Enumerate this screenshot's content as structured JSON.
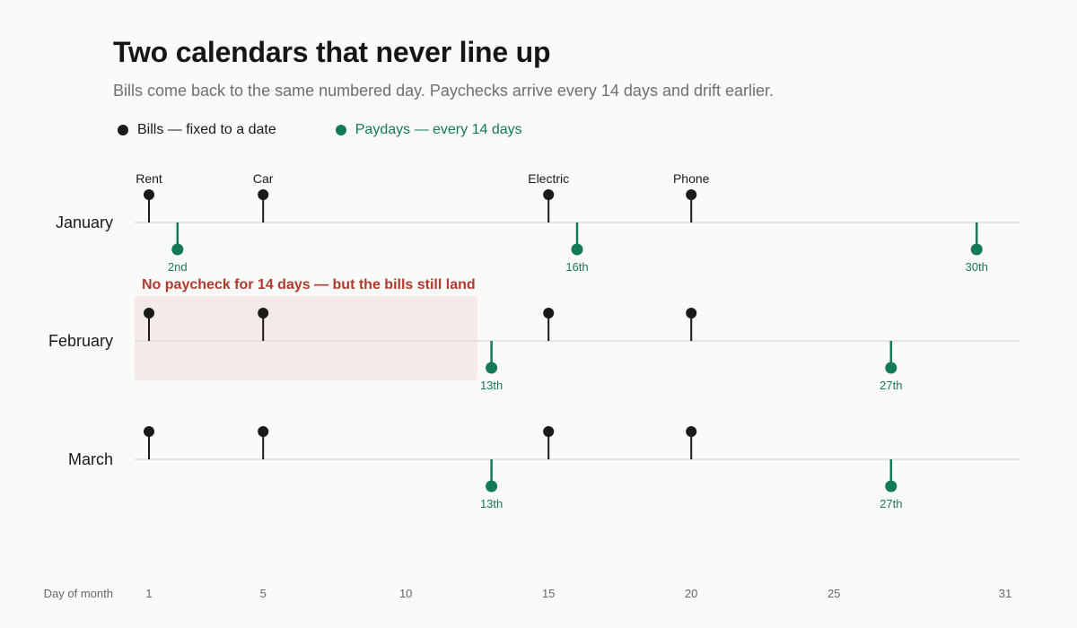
{
  "title": "Two calendars that never line up",
  "subtitle": "Bills come back to the same numbered day. Paychecks arrive every 14 days and drift earlier.",
  "colors": {
    "bills": "#1a1a1a",
    "paydays": "#147a55",
    "highlight_fill": "#f5eae8",
    "highlight_text": "#b03a2e",
    "gridline": "#dcdcdc",
    "axis_text": "#666666"
  },
  "legend": {
    "bills_label": "Bills — fixed to a date",
    "paydays_label": "Paydays — every 14 days"
  },
  "chart_data": {
    "type": "scatter",
    "title": "Two calendars that never line up",
    "subtitle": "Bills come back to the same numbered day. Paychecks arrive every 14 days and drift earlier.",
    "xlabel": "Day of month",
    "xlim": [
      1,
      31
    ],
    "x_ticks": [
      1,
      5,
      10,
      15,
      20,
      25,
      31
    ],
    "months": [
      "January",
      "February",
      "March"
    ],
    "bills": [
      {
        "name": "Rent",
        "day": 1
      },
      {
        "name": "Car",
        "day": 5
      },
      {
        "name": "Electric",
        "day": 15
      },
      {
        "name": "Phone",
        "day": 20
      }
    ],
    "paydays": [
      {
        "month": "January",
        "days": [
          2,
          16,
          30
        ],
        "labels": [
          "2nd",
          "16th",
          "30th"
        ]
      },
      {
        "month": "February",
        "days": [
          13,
          27
        ],
        "labels": [
          "13th",
          "27th"
        ]
      },
      {
        "month": "March",
        "days": [
          13,
          27
        ],
        "labels": [
          "13th",
          "27th"
        ]
      }
    ],
    "annotation": {
      "month": "February",
      "text": "No paycheck for 14 days — but the bills still land",
      "start_day": 1,
      "end_day": 12.5
    }
  }
}
